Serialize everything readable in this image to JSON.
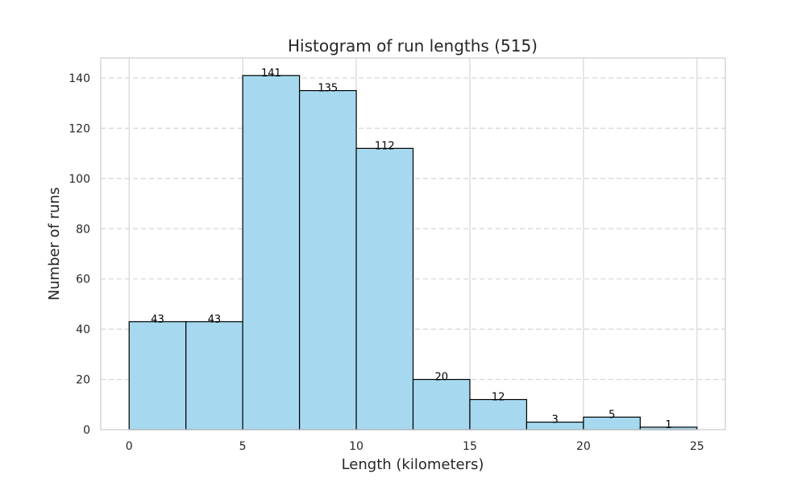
{
  "chart_data": {
    "type": "bar",
    "title": "Histogram of run lengths (515)",
    "xlabel": "Length (kilometers)",
    "ylabel": "Number of runs",
    "bin_edges": [
      0,
      2.5,
      5,
      7.5,
      10,
      12.5,
      15,
      17.5,
      20,
      22.5,
      25
    ],
    "values": [
      43,
      43,
      141,
      135,
      112,
      20,
      12,
      3,
      5,
      1
    ],
    "data_labels": [
      "43",
      "43",
      "141",
      "135",
      "112",
      "20",
      "12",
      "3",
      "5",
      "1"
    ],
    "xlim": [
      -1.25,
      26.25
    ],
    "ylim": [
      0,
      148
    ],
    "xticks": [
      0,
      5,
      10,
      15,
      20,
      25
    ],
    "xtick_labels": [
      "0",
      "5",
      "10",
      "15",
      "20",
      "25"
    ],
    "yticks": [
      0,
      20,
      40,
      60,
      80,
      100,
      120,
      140
    ],
    "ytick_labels": [
      "0",
      "20",
      "40",
      "60",
      "80",
      "100",
      "120",
      "140"
    ],
    "grid": {
      "x": true,
      "y": true,
      "y_style": "dashed"
    },
    "colors": {
      "bar_fill": "#a6d9ef",
      "bar_edge": "#000000",
      "grid": "#d6d6d6",
      "frame": "#cccccc",
      "text": "#262626"
    }
  }
}
